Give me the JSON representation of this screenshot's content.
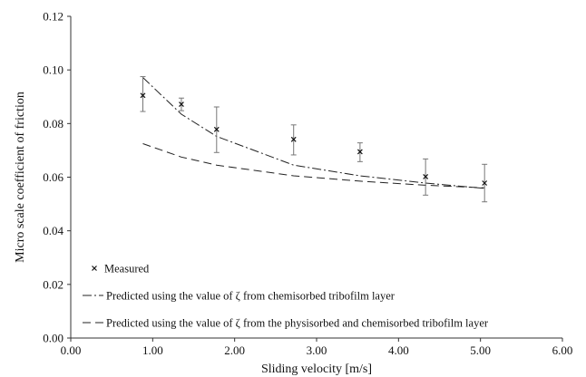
{
  "chart_data": {
    "type": "scatter",
    "xlabel": "Sliding velocity [m/s]",
    "ylabel": "Micro scale coefficient of friction",
    "xlim": [
      0,
      6
    ],
    "ylim": [
      0,
      0.12
    ],
    "x_ticks": [
      "0.00",
      "1.00",
      "2.00",
      "3.00",
      "4.00",
      "5.00",
      "6.00"
    ],
    "y_ticks": [
      "0.00",
      "0.02",
      "0.04",
      "0.06",
      "0.08",
      "0.10",
      "0.12"
    ],
    "grid": false,
    "legend_position": "bottom-left",
    "series": [
      {
        "name": "Measured",
        "style": "markers-with-error-bars",
        "marker": "x",
        "x": [
          0.88,
          1.35,
          1.78,
          2.72,
          3.53,
          4.33,
          5.05
        ],
        "y": [
          0.0905,
          0.0872,
          0.0778,
          0.0741,
          0.0695,
          0.0602,
          0.0578
        ],
        "error_low": [
          0.0845,
          0.0848,
          0.0692,
          0.0683,
          0.0658,
          0.0533,
          0.0508
        ],
        "error_high": [
          0.0975,
          0.0895,
          0.0862,
          0.0795,
          0.0728,
          0.0668,
          0.0648
        ]
      },
      {
        "name": "Predicted using the value of ζ from chemisorbed tribofilm layer",
        "style": "dash-dot",
        "x": [
          0.88,
          1.35,
          1.78,
          2.72,
          3.53,
          4.33,
          5.05
        ],
        "y": [
          0.0972,
          0.0835,
          0.0752,
          0.0645,
          0.0605,
          0.0578,
          0.0558
        ]
      },
      {
        "name": "Predicted using the value of ζ from the physisorbed and chemisorbed tribofilm layer",
        "style": "dashed",
        "x": [
          0.88,
          1.35,
          1.78,
          2.72,
          3.53,
          4.33,
          5.05
        ],
        "y": [
          0.0725,
          0.0675,
          0.0645,
          0.0605,
          0.0585,
          0.057,
          0.056
        ]
      }
    ]
  }
}
